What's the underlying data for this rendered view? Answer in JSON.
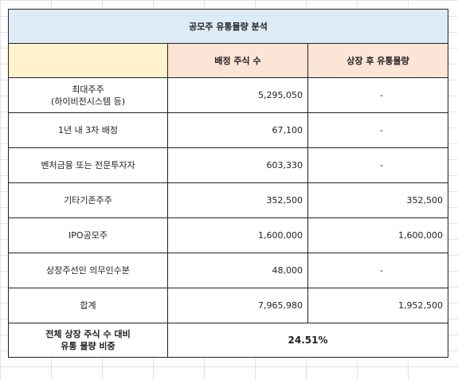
{
  "title": "공모주 유통물량 분석",
  "headers": {
    "label": "",
    "allocated": "배정 주식 수",
    "float": "상장 후 유통물량"
  },
  "rows": [
    {
      "label": "최대주주\n(하이비전시스템 등)",
      "allocated": "5,295,050",
      "float": "-"
    },
    {
      "label": "1년 내 3자 배정",
      "allocated": "67,100",
      "float": "-"
    },
    {
      "label": "벤처금융 또는 전문투자자",
      "allocated": "603,330",
      "float": "-"
    },
    {
      "label": "기타기존주주",
      "allocated": "352,500",
      "float": "352,500"
    },
    {
      "label": "IPO공모주",
      "allocated": "1,600,000",
      "float": "1,600,000"
    },
    {
      "label": "상장주선인 의무인수분",
      "allocated": "48,000",
      "float": "-"
    },
    {
      "label": "합계",
      "allocated": "7,965,980",
      "float": "1,952,500"
    }
  ],
  "ratio": {
    "label": "전체 상장 주식 수 대비\n유통 물량 비중",
    "value": "24.51%"
  },
  "colors": {
    "title_bg": "#ddebf7",
    "label_header_bg": "#fff2cc",
    "header_bg": "#fce4d6"
  }
}
